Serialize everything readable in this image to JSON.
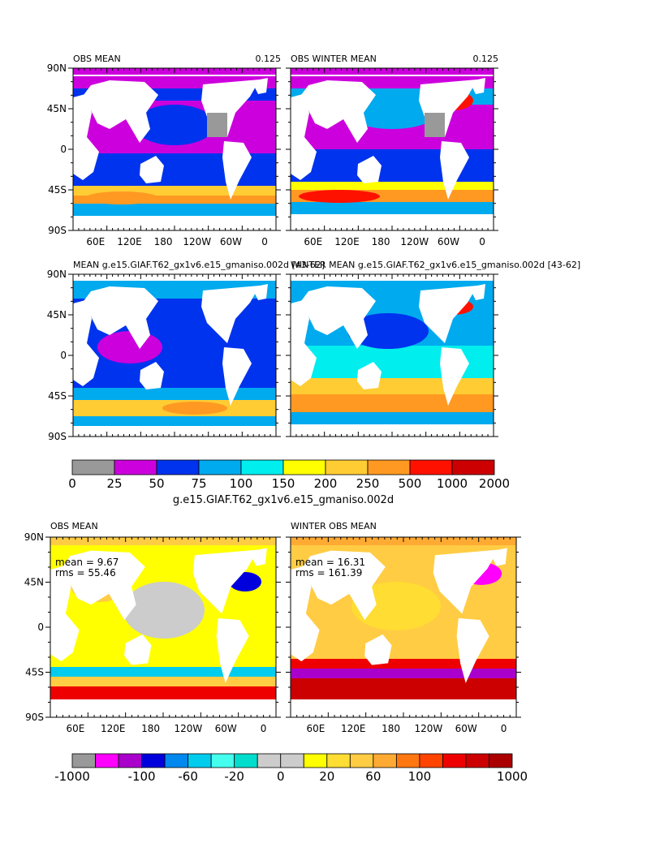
{
  "chart_data": [
    {
      "type": "heatmap",
      "title": "OBS MEAN",
      "right_label": "0.125",
      "xticks": [
        "60E",
        "120E",
        "180",
        "120W",
        "60W",
        "0"
      ],
      "yticks": [
        "90N",
        "45N",
        "0",
        "45S",
        "90S"
      ]
    },
    {
      "type": "heatmap",
      "title": "OBS WINTER MEAN",
      "right_label": "0.125",
      "xticks": [
        "60E",
        "120E",
        "180",
        "120W",
        "60W",
        "0"
      ]
    },
    {
      "type": "heatmap",
      "title": "MEAN  g.e15.GIAF.T62_gx1v6.e15_gmaniso.002d  [43-62]",
      "yticks": [
        "90N",
        "45N",
        "0",
        "45S",
        "90S"
      ]
    },
    {
      "type": "heatmap",
      "title": "WINTER MEAN g.e15.GIAF.T62_gx1v6.e15_gmaniso.002d  [43-62]"
    },
    {
      "type": "heatmap",
      "title": "OBS MEAN",
      "stats": [
        "mean = 9.67",
        "rms = 55.46"
      ],
      "xticks": [
        "60E",
        "120E",
        "180",
        "120W",
        "60W",
        "0"
      ],
      "yticks": [
        "90N",
        "45N",
        "0",
        "45S",
        "90S"
      ]
    },
    {
      "type": "heatmap",
      "title": "WINTER OBS MEAN",
      "stats": [
        "mean = 16.31",
        "rms = 161.39"
      ],
      "xticks": [
        "60E",
        "120E",
        "180",
        "120W",
        "60W",
        "0"
      ]
    }
  ],
  "colorbar1": {
    "labels": [
      "0",
      "25",
      "50",
      "75",
      "100",
      "150",
      "200",
      "250",
      "500",
      "1000",
      "2000"
    ],
    "colors": [
      "#999999",
      "#cc00dd",
      "#0033ee",
      "#00aaee",
      "#00eeee",
      "#ffff00",
      "#ffcc33",
      "#ff9922",
      "#ff1100",
      "#cc0000"
    ],
    "caption": "g.e15.GIAF.T62_gx1v6.e15_gmaniso.002d"
  },
  "colorbar2": {
    "labels": [
      "-1000",
      "-100",
      "-60",
      "-20",
      "0",
      "20",
      "60",
      "100",
      "1000"
    ],
    "colors": [
      "#999999",
      "#ff00ff",
      "#aa00cc",
      "#0000dd",
      "#0088ee",
      "#00ccee",
      "#44ffee",
      "#00ddcc",
      "#cccccc",
      "#cccccc",
      "#ffff00",
      "#ffdd33",
      "#ffcc44",
      "#ffaa33",
      "#ff7711",
      "#ff4400",
      "#ee0000",
      "#cc0000",
      "#aa0000"
    ]
  }
}
